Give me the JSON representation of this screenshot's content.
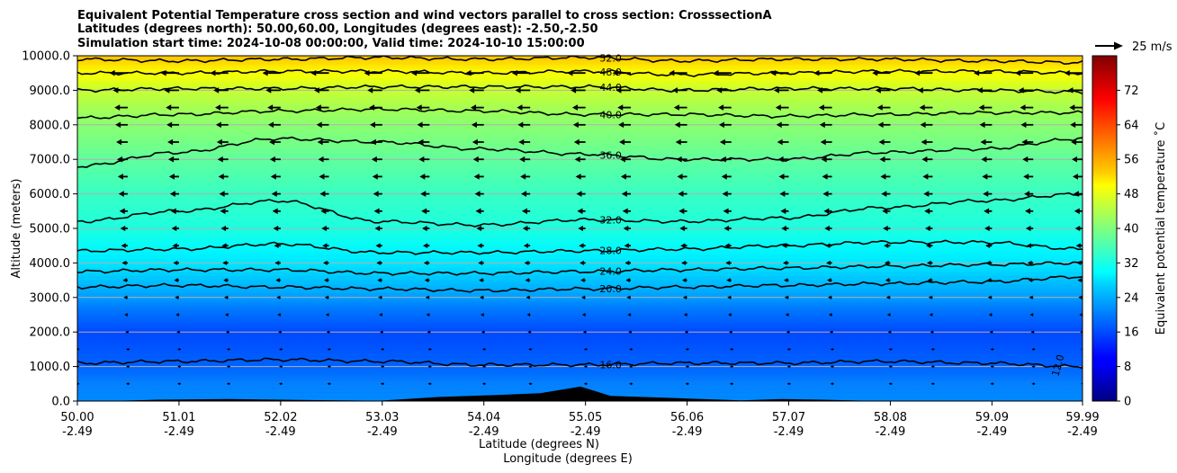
{
  "chart_data": {
    "type": "heatmap",
    "title": [
      "Equivalent Potential Temperature cross section and wind vectors parallel to cross section: CrosssectionA",
      "Latitudes (degrees north): 50.00,60.00, Longitudes (degrees east): -2.50,-2.50",
      "Simulation start time: 2024-10-08 00:00:00, Valid time: 2024-10-10 15:00:00"
    ],
    "ylabel": "Altitude (meters)",
    "xlabel_1": "Latitude (degrees N)",
    "xlabel_2": "Longitude (degrees E)",
    "ylim": [
      0,
      10000
    ],
    "yticks": [
      "0.0",
      "1000.0",
      "2000.0",
      "3000.0",
      "4000.0",
      "5000.0",
      "6000.0",
      "7000.0",
      "8000.0",
      "9000.0",
      "10000.0"
    ],
    "ytick_values": [
      0,
      1000,
      2000,
      3000,
      4000,
      5000,
      6000,
      7000,
      8000,
      9000,
      10000
    ],
    "xlim": [
      50.0,
      59.99
    ],
    "xtick_lat": [
      "50.00",
      "51.01",
      "52.02",
      "53.03",
      "54.04",
      "55.05",
      "56.06",
      "57.07",
      "58.08",
      "59.09",
      "59.99"
    ],
    "xtick_lat_values": [
      50.0,
      51.01,
      52.02,
      53.03,
      54.04,
      55.05,
      56.06,
      57.07,
      58.08,
      59.09,
      59.99
    ],
    "xtick_lon": [
      "-2.49",
      "-2.49",
      "-2.49",
      "-2.49",
      "-2.49",
      "-2.49",
      "-2.49",
      "-2.49",
      "-2.49",
      "-2.49",
      "-2.49"
    ],
    "grid": true,
    "colorbar": {
      "label": "Equivalent potential temperature $^\\circ$C",
      "label_text": "Equivalent potential temperature ˚C",
      "range": [
        0,
        80
      ],
      "ticks": [
        "0",
        "8",
        "16",
        "24",
        "32",
        "40",
        "48",
        "56",
        "64",
        "72"
      ],
      "tick_values": [
        0,
        8,
        16,
        24,
        32,
        40,
        48,
        56,
        64,
        72
      ],
      "colormap": "jet"
    },
    "quiver_key": "25 m/s",
    "contours": [
      {
        "level": 12,
        "label": "12.0"
      },
      {
        "level": 16,
        "label": "16.0",
        "altitude_profile": [
          [
            50.0,
            1100
          ],
          [
            51.0,
            1150
          ],
          [
            52.0,
            1200
          ],
          [
            53.0,
            1150
          ],
          [
            54.0,
            1050
          ],
          [
            55.05,
            1050
          ],
          [
            56.0,
            1100
          ],
          [
            57.0,
            1100
          ],
          [
            58.0,
            1150
          ],
          [
            59.0,
            1100
          ],
          [
            59.99,
            1000
          ]
        ]
      },
      {
        "level": 20,
        "label": "20.0",
        "altitude_profile": [
          [
            50.0,
            3300
          ],
          [
            51.0,
            3350
          ],
          [
            52.0,
            3300
          ],
          [
            53.0,
            3250
          ],
          [
            54.0,
            3200
          ],
          [
            55.05,
            3250
          ],
          [
            56.0,
            3300
          ],
          [
            57.0,
            3350
          ],
          [
            58.0,
            3400
          ],
          [
            59.0,
            3450
          ],
          [
            59.99,
            3600
          ]
        ]
      },
      {
        "level": 24,
        "label": "24.0",
        "altitude_profile": [
          [
            50.0,
            3750
          ],
          [
            51.0,
            3800
          ],
          [
            52.0,
            3800
          ],
          [
            53.0,
            3700
          ],
          [
            54.0,
            3700
          ],
          [
            55.05,
            3750
          ],
          [
            56.0,
            3800
          ],
          [
            57.0,
            3850
          ],
          [
            58.0,
            3900
          ],
          [
            59.0,
            3950
          ],
          [
            59.99,
            4000
          ]
        ]
      },
      {
        "level": 28,
        "label": "28.0",
        "altitude_profile": [
          [
            50.0,
            4350
          ],
          [
            51.0,
            4400
          ],
          [
            52.0,
            4550
          ],
          [
            53.0,
            4300
          ],
          [
            54.0,
            4300
          ],
          [
            55.05,
            4350
          ],
          [
            56.0,
            4400
          ],
          [
            57.0,
            4500
          ],
          [
            58.0,
            4600
          ],
          [
            59.0,
            4600
          ],
          [
            59.99,
            4400
          ]
        ]
      },
      {
        "level": 32,
        "label": "32.0",
        "altitude_profile": [
          [
            50.0,
            5200
          ],
          [
            51.0,
            5500
          ],
          [
            52.0,
            5800
          ],
          [
            53.0,
            5200
          ],
          [
            54.0,
            5100
          ],
          [
            55.05,
            5250
          ],
          [
            56.0,
            5200
          ],
          [
            57.0,
            5300
          ],
          [
            58.0,
            5600
          ],
          [
            59.0,
            5800
          ],
          [
            59.99,
            6000
          ]
        ]
      },
      {
        "level": 36,
        "label": "36.0",
        "altitude_profile": [
          [
            50.0,
            6800
          ],
          [
            51.0,
            7200
          ],
          [
            52.0,
            7600
          ],
          [
            53.0,
            7500
          ],
          [
            54.0,
            7300
          ],
          [
            55.05,
            7150
          ],
          [
            56.0,
            7000
          ],
          [
            57.0,
            7000
          ],
          [
            58.0,
            7200
          ],
          [
            59.0,
            7300
          ],
          [
            59.99,
            7600
          ]
        ]
      },
      {
        "level": 40,
        "label": "40.0",
        "altitude_profile": [
          [
            50.0,
            8200
          ],
          [
            51.0,
            8300
          ],
          [
            52.0,
            8400
          ],
          [
            53.0,
            8450
          ],
          [
            54.0,
            8400
          ],
          [
            55.05,
            8300
          ],
          [
            56.0,
            8300
          ],
          [
            57.0,
            8250
          ],
          [
            58.0,
            8300
          ],
          [
            59.0,
            8350
          ],
          [
            59.99,
            8350
          ]
        ]
      },
      {
        "level": 44,
        "label": "44.0",
        "altitude_profile": [
          [
            50.0,
            9000
          ],
          [
            51.0,
            9050
          ],
          [
            52.0,
            9050
          ],
          [
            53.0,
            9100
          ],
          [
            54.0,
            9100
          ],
          [
            55.05,
            9100
          ],
          [
            56.0,
            9000
          ],
          [
            57.0,
            9050
          ],
          [
            58.0,
            9050
          ],
          [
            59.0,
            9000
          ],
          [
            59.99,
            8950
          ]
        ]
      },
      {
        "level": 48,
        "label": "48.0",
        "altitude_profile": [
          [
            50.0,
            9500
          ],
          [
            51.0,
            9500
          ],
          [
            52.0,
            9550
          ],
          [
            53.0,
            9550
          ],
          [
            54.0,
            9500
          ],
          [
            55.05,
            9550
          ],
          [
            56.0,
            9450
          ],
          [
            57.0,
            9500
          ],
          [
            58.0,
            9550
          ],
          [
            59.0,
            9550
          ],
          [
            59.99,
            9500
          ]
        ]
      },
      {
        "level": 52,
        "label": "52.0",
        "altitude_profile": [
          [
            50.0,
            9900
          ],
          [
            51.0,
            9850
          ],
          [
            52.0,
            9900
          ],
          [
            53.0,
            9950
          ],
          [
            54.0,
            9900
          ],
          [
            55.05,
            9950
          ],
          [
            56.0,
            9850
          ],
          [
            57.0,
            9900
          ],
          [
            58.0,
            9900
          ],
          [
            59.0,
            9850
          ],
          [
            59.99,
            9800
          ]
        ]
      }
    ],
    "theta_e_field": {
      "altitude_levels": [
        0,
        1000,
        2000,
        3000,
        4000,
        5000,
        6000,
        7000,
        8000,
        9000,
        10000
      ],
      "values_degC": [
        20,
        19,
        16,
        21,
        28,
        32,
        34,
        37,
        41,
        46,
        55
      ]
    },
    "wind_columns_lat": [
      50.0,
      50.5,
      51.01,
      51.5,
      52.02,
      52.5,
      53.03,
      53.5,
      54.04,
      54.5,
      55.05,
      55.5,
      56.06,
      56.5,
      57.07,
      57.5,
      58.08,
      58.5,
      59.09,
      59.5,
      59.99
    ],
    "wind_rows_altitude": [
      500,
      1000,
      1500,
      2000,
      2500,
      3000,
      3500,
      4000,
      4500,
      5000,
      5500,
      6000,
      6500,
      7000,
      7500,
      8000,
      8500,
      9000,
      9500
    ],
    "wind_u_by_altitude_ms": [
      -2,
      -2,
      -2,
      -3,
      -4,
      -5,
      -6,
      -7,
      -8,
      -9,
      -10,
      -11,
      -12,
      -13,
      -14,
      -15,
      -16,
      -18,
      -22
    ]
  }
}
